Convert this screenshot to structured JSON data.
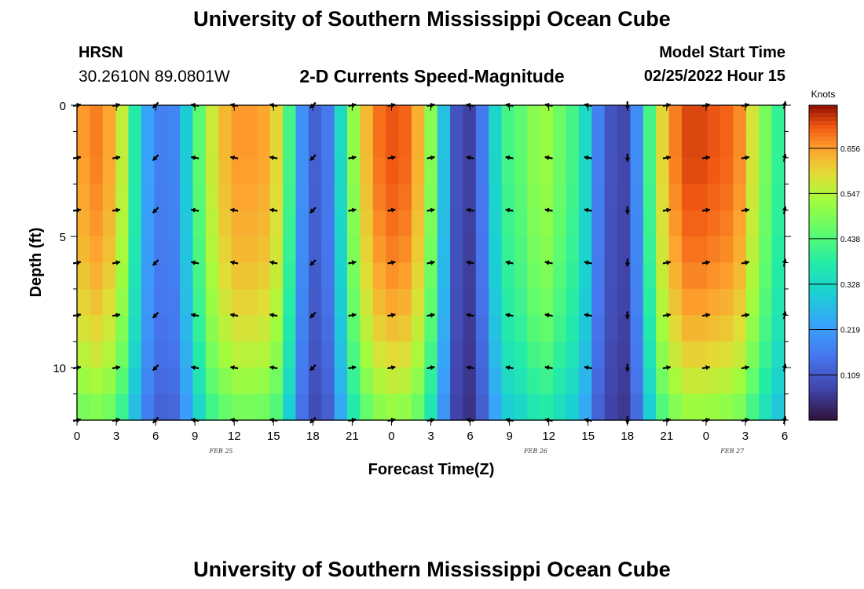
{
  "header": {
    "title": "University of Southern Mississippi Ocean Cube",
    "station": "HRSN",
    "coords": "30.2610N  89.0801W",
    "subtitle": "2-D Currents Speed-Magnitude",
    "model_label": "Model Start Time",
    "model_time": "02/25/2022 Hour 15"
  },
  "footer": {
    "title": "University of Southern Mississippi Ocean Cube"
  },
  "chart_data": {
    "type": "heatmap",
    "title": "2-D Currents Speed-Magnitude",
    "xlabel": "Forecast Time(Z)",
    "ylabel": "Depth (ft)",
    "x_ticks": [
      "0",
      "3",
      "6",
      "9",
      "12",
      "15",
      "18",
      "21",
      "0",
      "3",
      "6",
      "9",
      "12",
      "15",
      "18",
      "21",
      "0",
      "3",
      "6"
    ],
    "x_range_hours": [
      0,
      54
    ],
    "y_ticks": [
      "0",
      "5",
      "10"
    ],
    "y_range_ft": [
      0,
      12
    ],
    "date_labels": [
      {
        "text": "FEB 25",
        "hour": 11
      },
      {
        "text": "FEB 26",
        "hour": 35
      },
      {
        "text": "FEB 27",
        "hour": 50
      }
    ],
    "colorbar": {
      "unit": "Knots",
      "ticks": [
        "0.656",
        "0.547",
        "0.438",
        "0.328",
        "0.219",
        "0.109"
      ],
      "min": 0.0,
      "max": 0.76
    },
    "hours": [
      0,
      1,
      2,
      3,
      4,
      5,
      6,
      7,
      8,
      9,
      10,
      11,
      12,
      13,
      14,
      15,
      16,
      17,
      18,
      19,
      20,
      21,
      22,
      23,
      24,
      25,
      26,
      27,
      28,
      29,
      30,
      31,
      32,
      33,
      34,
      35,
      36,
      37,
      38,
      39,
      40,
      41,
      42,
      43,
      44,
      45,
      46,
      47,
      48,
      49,
      50,
      51,
      52,
      53,
      54
    ],
    "surface_speed_knots": [
      0.66,
      0.68,
      0.65,
      0.56,
      0.38,
      0.23,
      0.17,
      0.18,
      0.3,
      0.45,
      0.57,
      0.63,
      0.66,
      0.66,
      0.65,
      0.6,
      0.42,
      0.2,
      0.12,
      0.16,
      0.33,
      0.51,
      0.63,
      0.69,
      0.71,
      0.7,
      0.64,
      0.5,
      0.28,
      0.1,
      0.07,
      0.16,
      0.32,
      0.42,
      0.45,
      0.5,
      0.52,
      0.47,
      0.42,
      0.33,
      0.17,
      0.1,
      0.08,
      0.19,
      0.42,
      0.6,
      0.68,
      0.72,
      0.72,
      0.71,
      0.7,
      0.67,
      0.58,
      0.48,
      0.4
    ],
    "depth_factor": [
      {
        "depth_ft": 0,
        "factor": 1.0
      },
      {
        "depth_ft": 2,
        "factor": 1.0
      },
      {
        "depth_ft": 4,
        "factor": 0.98
      },
      {
        "depth_ft": 6,
        "factor": 0.95
      },
      {
        "depth_ft": 8,
        "factor": 0.9
      },
      {
        "depth_ft": 10,
        "factor": 0.82
      },
      {
        "depth_ft": 12,
        "factor": 0.7
      }
    ],
    "vector_hours": [
      0,
      3,
      6,
      9,
      12,
      15,
      18,
      21,
      24,
      27,
      30,
      33,
      36,
      39,
      42,
      45,
      48,
      51,
      54
    ],
    "vector_depths_ft": [
      0,
      2,
      4,
      6,
      8,
      10,
      12
    ],
    "vector_direction": [
      "E",
      "E",
      "SW",
      "W",
      "W",
      "W",
      "SW",
      "E",
      "E",
      "E",
      "W",
      "W",
      "W",
      "W",
      "S",
      "E",
      "E",
      "E",
      "N"
    ]
  }
}
